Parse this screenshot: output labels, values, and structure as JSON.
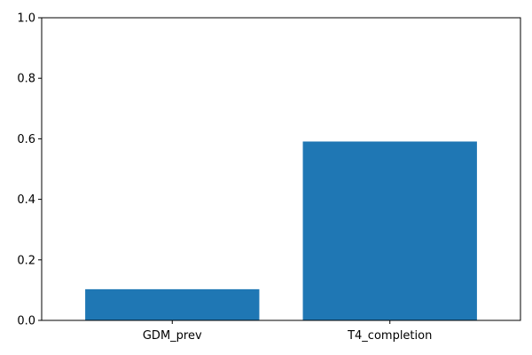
{
  "chart_data": {
    "type": "bar",
    "categories": [
      "GDM_prev",
      "T4_completion"
    ],
    "values": [
      0.103,
      0.591
    ],
    "ylim": [
      0,
      1
    ],
    "yticks": [
      0.0,
      0.2,
      0.4,
      0.6,
      0.8,
      1.0
    ],
    "ytick_labels": [
      "0.0",
      "0.2",
      "0.4",
      "0.6",
      "0.8",
      "1.0"
    ],
    "title": "",
    "xlabel": "",
    "ylabel": "",
    "grid": false,
    "bar_color": "#1f77b4",
    "axis_color": "#000000"
  }
}
